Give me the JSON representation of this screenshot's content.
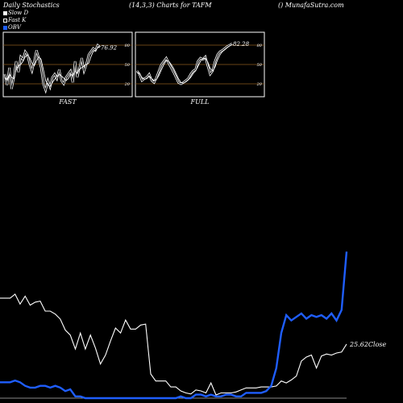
{
  "header": {
    "left": "Daily Stochastics",
    "center": "(14,3,3) Charts for TAFM",
    "right": "() MunafaSutra.com"
  },
  "legend": [
    {
      "label": "Slow  D",
      "color": "#ffffff"
    },
    {
      "label": "Fast K",
      "color": "#000000"
    },
    {
      "label": "OBV",
      "color": "#1f5eff"
    }
  ],
  "colors": {
    "background": "#000000",
    "grid": "#8b5a1e",
    "line": "#ffffff",
    "obv": "#1f5eff",
    "axis": "#888888"
  },
  "chart_data": [
    {
      "type": "line",
      "name": "fast-stochastics",
      "xlabel": "FAST",
      "ylim": [
        0,
        100
      ],
      "yticks": [
        20,
        50,
        80
      ],
      "last_value_label": "76.92",
      "series": [
        {
          "name": "Fast K",
          "values": [
            35,
            18,
            45,
            12,
            30,
            55,
            38,
            62,
            58,
            70,
            65,
            50,
            40,
            55,
            72,
            60,
            45,
            20,
            10,
            25,
            15,
            30,
            35,
            28,
            42,
            25,
            20,
            30,
            35,
            40,
            22,
            55,
            30,
            45,
            60,
            40,
            50,
            65,
            70,
            75,
            72,
            80,
            76.92
          ]
        },
        {
          "name": "Slow D",
          "values": [
            30,
            25,
            35,
            30,
            28,
            42,
            48,
            50,
            55,
            62,
            65,
            60,
            52,
            48,
            56,
            62,
            58,
            42,
            25,
            18,
            16,
            22,
            27,
            31,
            35,
            32,
            29,
            25,
            28,
            35,
            32,
            40,
            36,
            43,
            45,
            48,
            50,
            52,
            62,
            70,
            72,
            76,
            78
          ]
        }
      ]
    },
    {
      "type": "line",
      "name": "full-stochastics",
      "xlabel": "FULL",
      "ylim": [
        0,
        100
      ],
      "yticks": [
        20,
        50,
        80
      ],
      "last_value_label": "82.28",
      "series": [
        {
          "name": "Fast K",
          "values": [
            40,
            35,
            25,
            28,
            30,
            35,
            25,
            22,
            30,
            40,
            50,
            55,
            60,
            52,
            45,
            38,
            30,
            22,
            20,
            22,
            25,
            28,
            35,
            40,
            42,
            55,
            60,
            58,
            62,
            48,
            35,
            40,
            55,
            65,
            70,
            72,
            75,
            78,
            80,
            82.28
          ]
        },
        {
          "name": "Slow D",
          "values": [
            38,
            36,
            30,
            27,
            28,
            32,
            28,
            25,
            27,
            33,
            42,
            50,
            56,
            55,
            50,
            44,
            36,
            28,
            22,
            21,
            23,
            26,
            30,
            36,
            40,
            47,
            55,
            59,
            60,
            54,
            44,
            40,
            46,
            57,
            65,
            70,
            73,
            76,
            79,
            81
          ]
        }
      ]
    },
    {
      "type": "line",
      "name": "price-and-obv",
      "annotations": [
        "25.62Close"
      ],
      "series": [
        {
          "name": "Close",
          "values": [
            30.2,
            30.2,
            30.2,
            30.6,
            29.6,
            30.4,
            29.5,
            29.8,
            29.9,
            28.9,
            28.9,
            28.6,
            28.1,
            27.0,
            26.5,
            25.1,
            26.7,
            25.1,
            26.5,
            25.2,
            23.6,
            24.5,
            25.9,
            27.2,
            26.7,
            28.0,
            27.1,
            27.1,
            27.5,
            27.6,
            22.6,
            21.9,
            21.9,
            21.9,
            21.3,
            21.3,
            20.9,
            20.7,
            20.6,
            21.0,
            20.9,
            20.7,
            21.7,
            20.5,
            20.7,
            20.7,
            20.7,
            20.8,
            21.0,
            21.2,
            21.2,
            21.2,
            21.3,
            21.3,
            21.3,
            21.4,
            21.9,
            21.7,
            22.0,
            22.4,
            23.9,
            24.3,
            24.5,
            23.2,
            24.4,
            24.6,
            24.5,
            24.7,
            24.8,
            25.6
          ]
        },
        {
          "name": "OBV",
          "values": [
            1.5,
            1.5,
            1.5,
            1.6,
            1.5,
            1.3,
            1.2,
            1.2,
            1.3,
            1.3,
            1.2,
            1.3,
            1.2,
            1.0,
            1.1,
            0.7,
            0.7,
            0.6,
            0.6,
            0.6,
            0.6,
            0.6,
            0.6,
            0.6,
            0.6,
            0.6,
            0.6,
            0.6,
            0.6,
            0.6,
            0.6,
            0.6,
            0.6,
            0.6,
            0.6,
            0.6,
            0.7,
            0.6,
            0.6,
            0.8,
            0.8,
            0.7,
            0.8,
            0.7,
            0.7,
            0.8,
            0.8,
            0.7,
            0.7,
            0.9,
            0.9,
            0.9,
            0.9,
            1.0,
            1.3,
            2.3,
            4.3,
            5.3,
            5.0,
            5.2,
            5.4,
            5.1,
            5.3,
            5.2,
            5.3,
            5.1,
            5.4,
            5.0,
            5.6,
            8.9
          ]
        }
      ]
    }
  ]
}
